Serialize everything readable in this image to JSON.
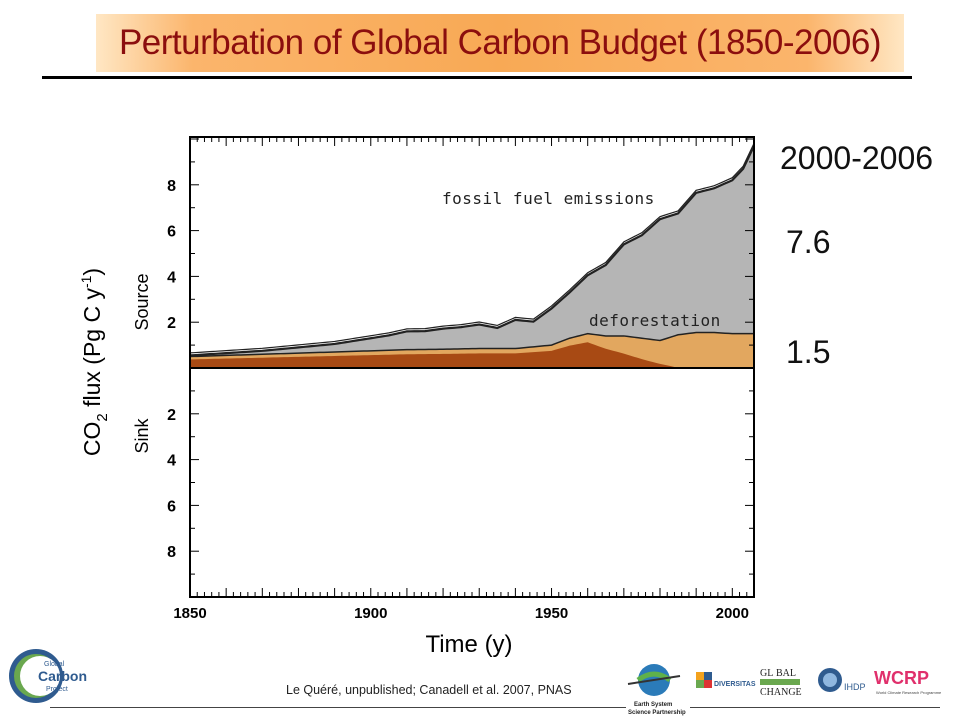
{
  "title": "Perturbation of Global Carbon Budget (1850-2006)",
  "period_label": "2000-2006",
  "fossil_value": "7.6",
  "deforestation_value": "1.5",
  "citation": "Le Quéré, unpublished; Canadell et al. 2007, PNAS",
  "logos": {
    "gcp": [
      "Global",
      "Carbon",
      "Project"
    ],
    "essp": [
      "Earth System",
      "Science Partnership"
    ],
    "diversitas": "DIVERSITAS",
    "igbp": [
      "GL",
      "BAL",
      "CHANGE"
    ],
    "ihdp": "IHDP",
    "wcrp": "WCRP",
    "wcrp_sub": "World Climate Research Programme"
  },
  "colors": {
    "title_text": "#8b0e0e",
    "title_band": "#f8a955",
    "fossil": "#b5b5b5",
    "deforestation": "#e2a75f",
    "deforestation_dark": "#a84a14"
  },
  "chart_data": {
    "type": "area",
    "xlabel": "Time (y)",
    "ylabel": "CO2 flux (Pg C y-1)",
    "ylabel_main": "CO",
    "ylabel_sub": "2",
    "ylabel_mid": " flux (Pg C y",
    "ylabel_sup": "-1",
    "ylabel_end": ")",
    "upper_label": "Source",
    "lower_label": "Sink",
    "xlim": [
      1850,
      2006
    ],
    "ylim": [
      -10,
      10
    ],
    "x_ticks": [
      1850,
      1900,
      1950,
      2000
    ],
    "x_tick_labels": [
      "1850",
      "1900",
      "1950",
      "2000"
    ],
    "y_ticks_up": [
      2,
      4,
      6,
      8
    ],
    "y_tick_labels_up": [
      "2",
      "4",
      "6",
      "8"
    ],
    "y_ticks_down": [
      -2,
      -4,
      -6,
      -8
    ],
    "y_tick_labels_down": [
      "2",
      "4",
      "6",
      "8"
    ],
    "annotations": [
      "fossil fuel emissions",
      "deforestation"
    ],
    "series": [
      {
        "name": "deforestation",
        "x": [
          1850,
          1860,
          1870,
          1880,
          1890,
          1900,
          1910,
          1920,
          1930,
          1940,
          1950,
          1955,
          1960,
          1965,
          1970,
          1975,
          1980,
          1985,
          1990,
          1995,
          2000,
          2006
        ],
        "y": [
          0.5,
          0.55,
          0.6,
          0.65,
          0.7,
          0.75,
          0.8,
          0.82,
          0.85,
          0.85,
          1.0,
          1.3,
          1.5,
          1.4,
          1.4,
          1.3,
          1.2,
          1.45,
          1.55,
          1.55,
          1.5,
          1.5
        ]
      },
      {
        "name": "fossil fuel emissions",
        "x": [
          1850,
          1860,
          1870,
          1880,
          1890,
          1900,
          1905,
          1910,
          1915,
          1920,
          1925,
          1930,
          1935,
          1940,
          1945,
          1950,
          1955,
          1960,
          1965,
          1970,
          1975,
          1980,
          1985,
          1990,
          1995,
          2000,
          2003,
          2006
        ],
        "y": [
          0.05,
          0.1,
          0.15,
          0.25,
          0.35,
          0.55,
          0.65,
          0.8,
          0.8,
          0.9,
          0.95,
          1.05,
          0.9,
          1.25,
          1.1,
          1.6,
          2.0,
          2.55,
          3.1,
          4.0,
          4.5,
          5.3,
          5.3,
          6.1,
          6.3,
          6.7,
          7.2,
          8.2
        ]
      }
    ]
  }
}
